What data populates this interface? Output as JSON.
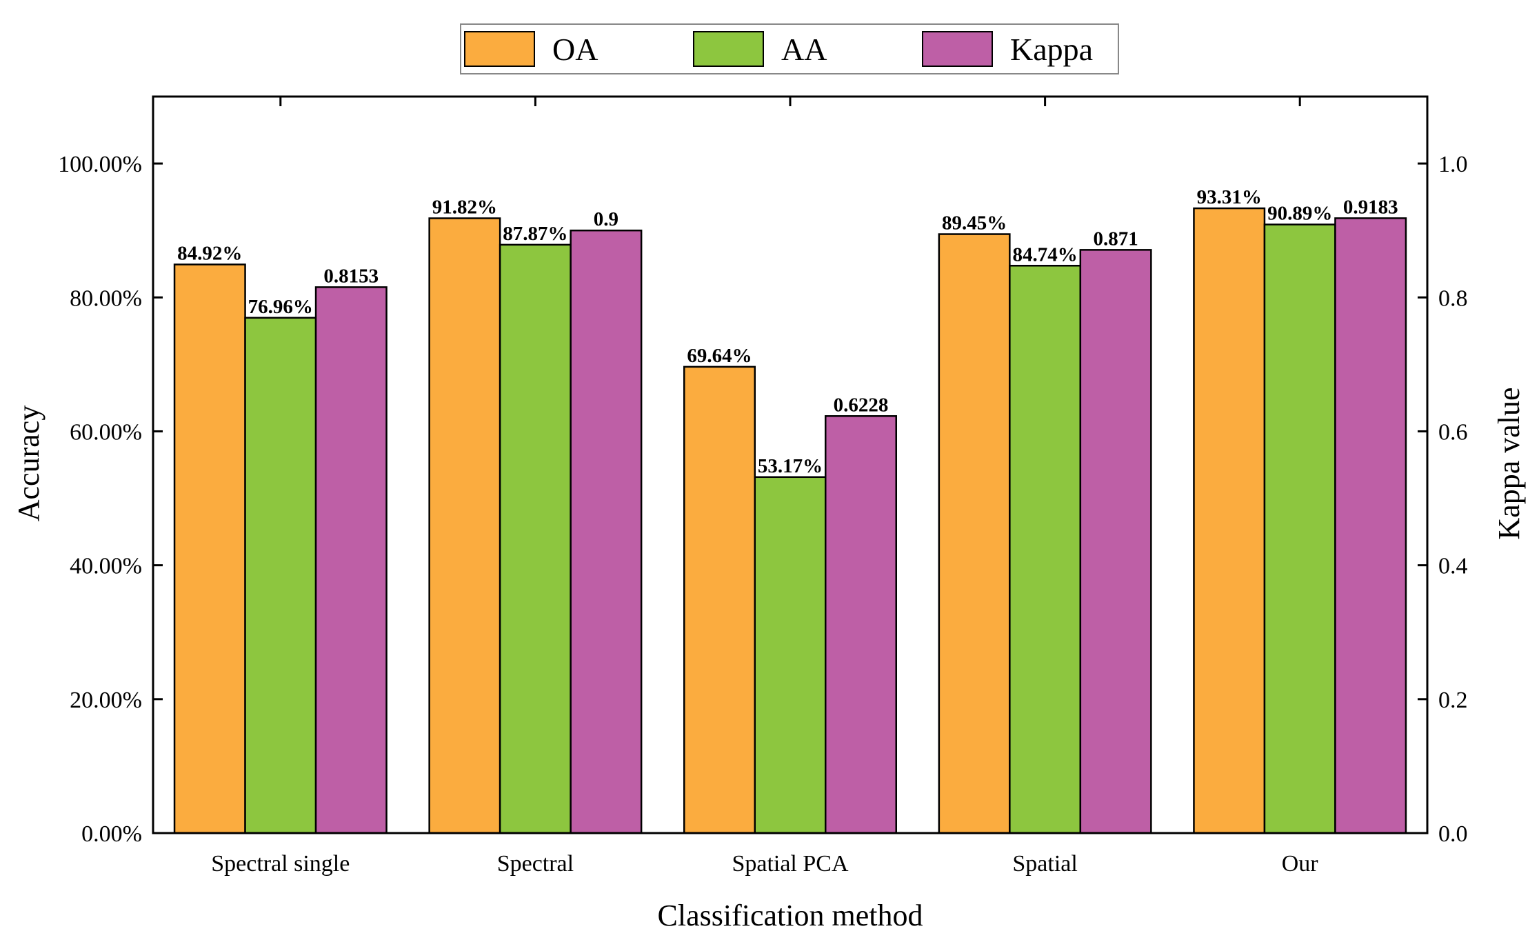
{
  "chart_data": {
    "type": "bar",
    "title": "",
    "xlabel": "Classification method",
    "ylabel": "Accuracy",
    "y2label": "Kappa value",
    "categories": [
      "Spectral single",
      "Spectral",
      "Spatial PCA",
      "Spatial",
      "Our"
    ],
    "ylim": [
      0,
      110
    ],
    "y2lim": [
      0,
      1.1
    ],
    "yticks": [
      "0.00%",
      "20.00%",
      "40.00%",
      "60.00%",
      "80.00%",
      "100.00%"
    ],
    "y2ticks": [
      "0.0",
      "0.2",
      "0.4",
      "0.6",
      "0.8",
      "1.0"
    ],
    "legend_position": "top-center",
    "series": [
      {
        "name": "OA",
        "axis": "left",
        "color": "#FBAC3F",
        "values": [
          84.92,
          91.82,
          69.64,
          89.45,
          93.31
        ],
        "labels": [
          "84.92%",
          "91.82%",
          "69.64%",
          "89.45%",
          "93.31%"
        ]
      },
      {
        "name": "AA",
        "axis": "left",
        "color": "#8DC63F",
        "values": [
          76.96,
          87.87,
          53.17,
          84.74,
          90.89
        ],
        "labels": [
          "76.96%",
          "87.87%",
          "53.17%",
          "84.74%",
          "90.89%"
        ]
      },
      {
        "name": "Kappa",
        "axis": "right",
        "color": "#BE5FA6",
        "values": [
          0.8153,
          0.9,
          0.6228,
          0.871,
          0.9183
        ],
        "labels": [
          "0.8153",
          "0.9",
          "0.6228",
          "0.871",
          "0.9183"
        ]
      }
    ]
  }
}
